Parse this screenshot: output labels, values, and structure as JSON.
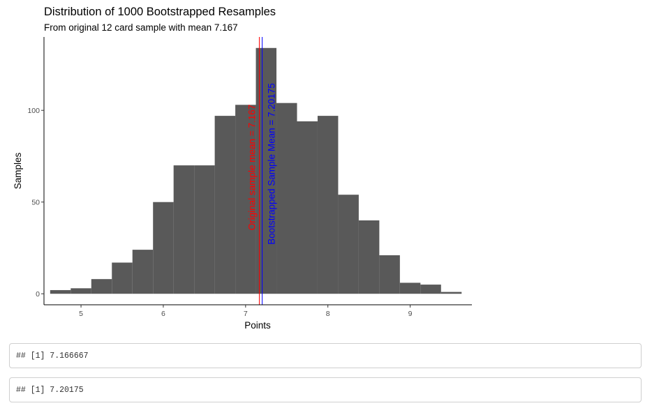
{
  "chart_data": {
    "type": "bar",
    "title": "Distribution of 1000 Bootstrapped Resamples",
    "subtitle": "From original 12 card sample with mean 7.167",
    "xlabel": "Points",
    "ylabel": "Samples",
    "bin_width": 0.25,
    "xlim": [
      4.55,
      9.75
    ],
    "ylim": [
      -6,
      140
    ],
    "x_ticks": [
      5,
      6,
      7,
      8,
      9
    ],
    "y_ticks": [
      0,
      50,
      100
    ],
    "grid": false,
    "bins": [
      {
        "x0": 4.625,
        "x1": 4.875,
        "count": 2
      },
      {
        "x0": 4.875,
        "x1": 5.125,
        "count": 3
      },
      {
        "x0": 5.125,
        "x1": 5.375,
        "count": 8
      },
      {
        "x0": 5.375,
        "x1": 5.625,
        "count": 17
      },
      {
        "x0": 5.625,
        "x1": 5.875,
        "count": 24
      },
      {
        "x0": 5.875,
        "x1": 6.125,
        "count": 50
      },
      {
        "x0": 6.125,
        "x1": 6.375,
        "count": 70
      },
      {
        "x0": 6.375,
        "x1": 6.625,
        "count": 70
      },
      {
        "x0": 6.625,
        "x1": 6.875,
        "count": 97
      },
      {
        "x0": 6.875,
        "x1": 7.125,
        "count": 103
      },
      {
        "x0": 7.125,
        "x1": 7.375,
        "count": 134
      },
      {
        "x0": 7.375,
        "x1": 7.625,
        "count": 104
      },
      {
        "x0": 7.625,
        "x1": 7.875,
        "count": 94
      },
      {
        "x0": 7.875,
        "x1": 8.125,
        "count": 97
      },
      {
        "x0": 8.125,
        "x1": 8.375,
        "count": 54
      },
      {
        "x0": 8.375,
        "x1": 8.625,
        "count": 40
      },
      {
        "x0": 8.625,
        "x1": 8.875,
        "count": 21
      },
      {
        "x0": 8.875,
        "x1": 9.125,
        "count": 6
      },
      {
        "x0": 9.125,
        "x1": 9.375,
        "count": 5
      },
      {
        "x0": 9.375,
        "x1": 9.625,
        "count": 1
      }
    ],
    "bar_color": "#595959",
    "vlines": [
      {
        "x": 7.166667,
        "color": "#ff0000",
        "label": "Original sample mean = 7.167"
      },
      {
        "x": 7.20175,
        "color": "#0000ff",
        "label": "Bootstrapped Sample Mean = 7.20175"
      }
    ]
  },
  "outputs": [
    {
      "text": "## [1] 7.166667"
    },
    {
      "text": "## [1] 7.20175"
    }
  ]
}
